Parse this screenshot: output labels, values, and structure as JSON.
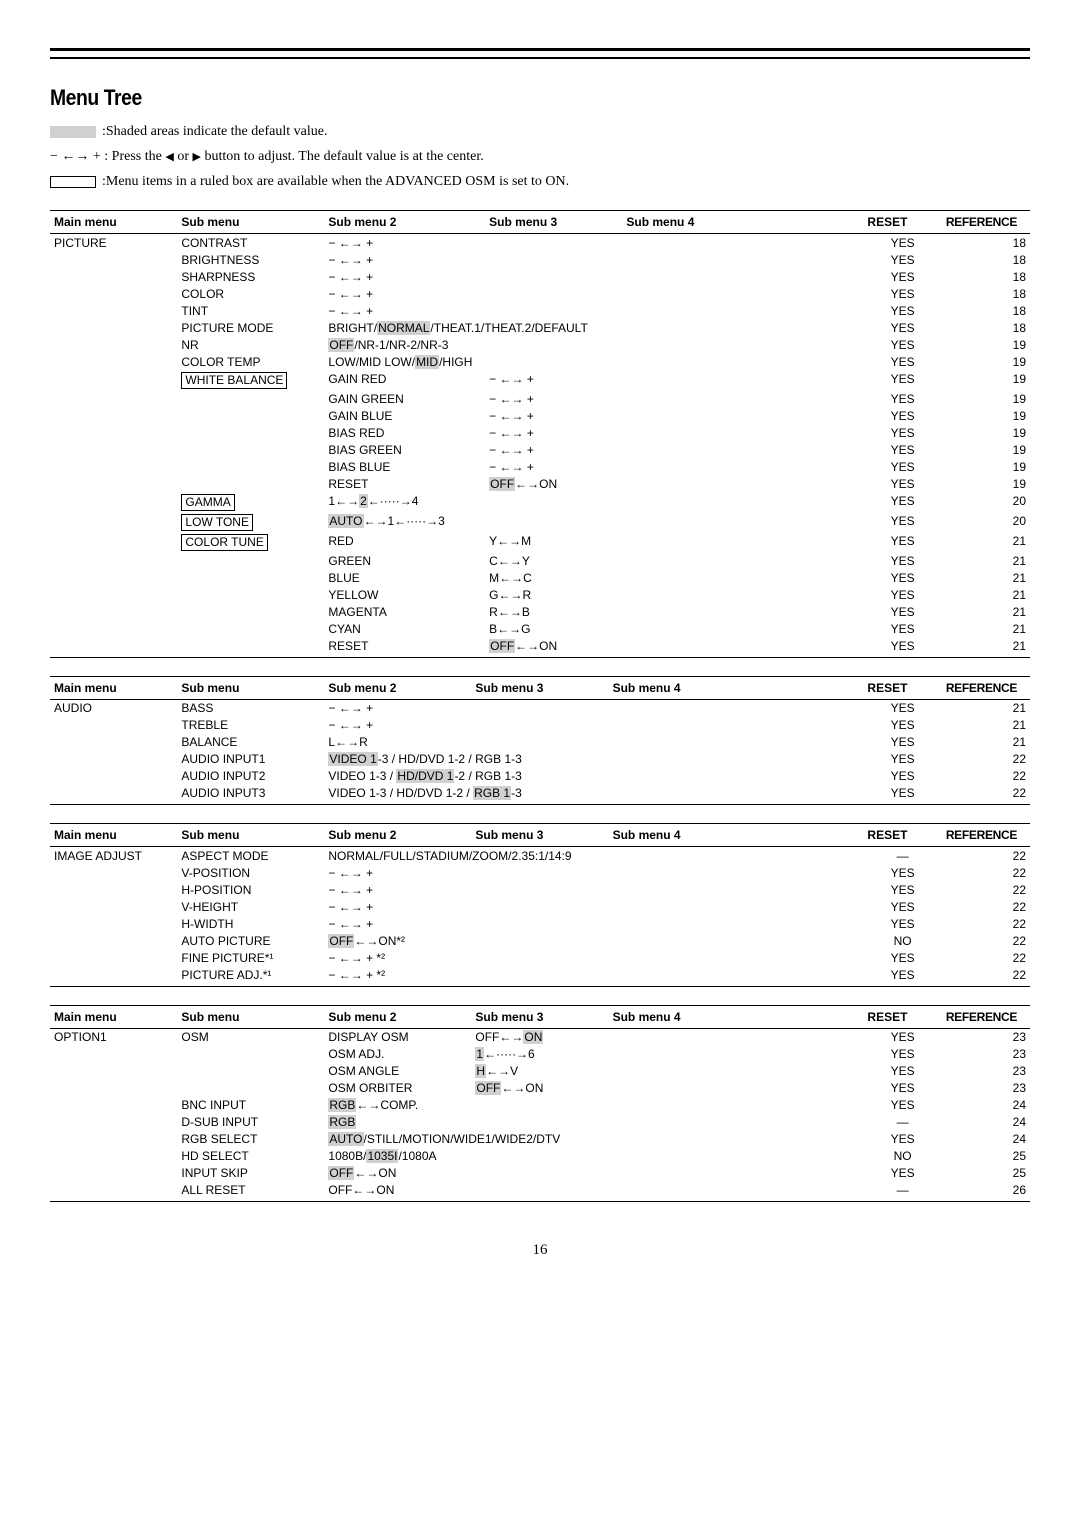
{
  "title": "Menu Tree",
  "legend": {
    "shaded": ":Shaded areas indicate the default value.",
    "arrows_prefix": "− ←→ + : Press the ",
    "arrows_suffix": " button to adjust. The default value is at the center.",
    "ruled": ":Menu items in a ruled box are available when the ADVANCED OSM is set to ON."
  },
  "headers": {
    "main": "Main menu",
    "sub": "Sub menu",
    "sub2": "Sub menu 2",
    "sub3": "Sub menu 3",
    "sub4": "Sub menu 4",
    "reset": "RESET",
    "ref": "REFERENCE"
  },
  "tables": [
    {
      "rows": [
        {
          "main": "PICTURE",
          "sub": "CONTRAST",
          "sub2": "− ←→ +",
          "reset": "YES",
          "ref": "18"
        },
        {
          "sub": "BRIGHTNESS",
          "sub2": "− ←→ +",
          "reset": "YES",
          "ref": "18"
        },
        {
          "sub": "SHARPNESS",
          "sub2": "− ←→ +",
          "reset": "YES",
          "ref": "18"
        },
        {
          "sub": "COLOR",
          "sub2": "− ←→ +",
          "reset": "YES",
          "ref": "18"
        },
        {
          "sub": "TINT",
          "sub2": "− ←→ +",
          "reset": "YES",
          "ref": "18"
        },
        {
          "sub": "PICTURE MODE",
          "sub2html": "BRIGHT/<span class='shaded'>NORMAL</span>/THEAT.1/THEAT.2/DEFAULT",
          "span23": true,
          "reset": "YES",
          "ref": "18"
        },
        {
          "sub": "NR",
          "sub2html": "<span class='shaded'>OFF</span>/NR-1/NR-2/NR-3",
          "reset": "YES",
          "ref": "19"
        },
        {
          "sub": "COLOR TEMP",
          "sub2html": "LOW/MID LOW/<span class='shaded'>MID</span>/HIGH",
          "span23": true,
          "reset": "YES",
          "ref": "19"
        },
        {
          "subhtml": "<span class='boxed'>WHITE BALANCE</span>",
          "sub2": "GAIN RED",
          "sub3": "− ←→ +",
          "reset": "YES",
          "ref": "19"
        },
        {
          "sub2": "GAIN GREEN",
          "sub3": "− ←→ +",
          "reset": "YES",
          "ref": "19"
        },
        {
          "sub2": "GAIN BLUE",
          "sub3": "− ←→ +",
          "reset": "YES",
          "ref": "19"
        },
        {
          "sub2": "BIAS RED",
          "sub3": "− ←→ +",
          "reset": "YES",
          "ref": "19"
        },
        {
          "sub2": "BIAS GREEN",
          "sub3": "− ←→ +",
          "reset": "YES",
          "ref": "19"
        },
        {
          "sub2": "BIAS BLUE",
          "sub3": "− ←→ +",
          "reset": "YES",
          "ref": "19"
        },
        {
          "sub2": "RESET",
          "sub3html": "<span class='shaded'>OFF</span>←→ON",
          "reset": "YES",
          "ref": "19"
        },
        {
          "subhtml": "<span class='boxed'>GAMMA</span>",
          "sub2html": "1←→<span class='shaded'>2</span>←·····→4",
          "reset": "YES",
          "ref": "20"
        },
        {
          "subhtml": "<span class='boxed'>LOW TONE</span>",
          "sub2html": "<span class='shaded'>AUTO</span>←→1←·····→3",
          "reset": "YES",
          "ref": "20"
        },
        {
          "subhtml": "<span class='boxed'>COLOR TUNE</span>",
          "sub2": "RED",
          "sub3": "Y←→M",
          "reset": "YES",
          "ref": "21"
        },
        {
          "sub2": "GREEN",
          "sub3": "C←→Y",
          "reset": "YES",
          "ref": "21"
        },
        {
          "sub2": "BLUE",
          "sub3": "M←→C",
          "reset": "YES",
          "ref": "21"
        },
        {
          "sub2": "YELLOW",
          "sub3": "G←→R",
          "reset": "YES",
          "ref": "21"
        },
        {
          "sub2": "MAGENTA",
          "sub3": "R←→B",
          "reset": "YES",
          "ref": "21"
        },
        {
          "sub2": "CYAN",
          "sub3": "B←→G",
          "reset": "YES",
          "ref": "21"
        },
        {
          "sub2": "RESET",
          "sub3html": "<span class='shaded'>OFF</span>←→ON",
          "reset": "YES",
          "ref": "21"
        }
      ]
    },
    {
      "rows": [
        {
          "main": "AUDIO",
          "sub": "BASS",
          "sub2": "− ←→ +",
          "reset": "YES",
          "ref": "21"
        },
        {
          "sub": "TREBLE",
          "sub2": "− ←→ +",
          "reset": "YES",
          "ref": "21"
        },
        {
          "sub": "BALANCE",
          "sub2": "L←→R",
          "reset": "YES",
          "ref": "21"
        },
        {
          "sub": "AUDIO INPUT1",
          "sub2html": "<span class='shaded'>VIDEO 1</span>-3 / HD/DVD 1-2 / RGB 1-3",
          "span23": true,
          "reset": "YES",
          "ref": "22"
        },
        {
          "sub": "AUDIO INPUT2",
          "sub2html": "VIDEO 1-3 / <span class='shaded'>HD/DVD 1</span>-2 / RGB 1-3",
          "span23": true,
          "reset": "YES",
          "ref": "22"
        },
        {
          "sub": "AUDIO INPUT3",
          "sub2html": "VIDEO 1-3 / HD/DVD 1-2 / <span class='shaded'>RGB 1</span>-3",
          "span23": true,
          "reset": "YES",
          "ref": "22"
        }
      ]
    },
    {
      "rows": [
        {
          "main": "IMAGE ADJUST",
          "sub": "ASPECT MODE",
          "sub2html": "NORMAL/FULL/STADIUM/ZOOM/2.35:1/14:9",
          "span23": true,
          "reset": "—",
          "ref": "22"
        },
        {
          "sub": "V-POSITION",
          "sub2": "− ←→ +",
          "reset": "YES",
          "ref": "22"
        },
        {
          "sub": "H-POSITION",
          "sub2": "− ←→ +",
          "reset": "YES",
          "ref": "22"
        },
        {
          "sub": "V-HEIGHT",
          "sub2": "− ←→ +",
          "reset": "YES",
          "ref": "22"
        },
        {
          "sub": "H-WIDTH",
          "sub2": "− ←→ +",
          "reset": "YES",
          "ref": "22"
        },
        {
          "sub": "AUTO PICTURE",
          "sub2html": "<span class='shaded'>OFF</span>←→ON*²",
          "reset": "NO",
          "ref": "22"
        },
        {
          "sub": "FINE PICTURE*¹",
          "sub2": "− ←→ + *²",
          "reset": "YES",
          "ref": "22"
        },
        {
          "sub": "PICTURE ADJ.*¹",
          "sub2": "− ←→ + *²",
          "reset": "YES",
          "ref": "22"
        }
      ]
    },
    {
      "rows": [
        {
          "main": "OPTION1",
          "sub": "OSM",
          "sub2": "DISPLAY OSM",
          "sub3html": "OFF←→<span class='shaded'>ON</span>",
          "reset": "YES",
          "ref": "23"
        },
        {
          "sub2": "OSM ADJ.",
          "sub3html": "<span class='shaded'>1</span>←·····→6",
          "reset": "YES",
          "ref": "23"
        },
        {
          "sub2": "OSM ANGLE",
          "sub3html": "<span class='shaded'>H</span>←→V",
          "reset": "YES",
          "ref": "23"
        },
        {
          "sub2": "OSM ORBITER",
          "sub3html": "<span class='shaded'>OFF</span>←→ON",
          "reset": "YES",
          "ref": "23"
        },
        {
          "sub": "BNC INPUT",
          "sub2html": "<span class='shaded'>RGB</span>←→COMP.",
          "reset": "YES",
          "ref": "24"
        },
        {
          "sub": "D-SUB INPUT",
          "sub2html": "<span class='shaded'>RGB</span>",
          "reset": "—",
          "ref": "24"
        },
        {
          "sub": "RGB SELECT",
          "sub2html": "<span class='shaded'>AUTO</span>/STILL/MOTION/WIDE1/WIDE2/DTV",
          "span23": true,
          "reset": "YES",
          "ref": "24"
        },
        {
          "sub": "HD SELECT",
          "sub2html": "1080B/<span class='shaded'>1035I</span>/1080A",
          "reset": "NO",
          "ref": "25"
        },
        {
          "sub": "INPUT SKIP",
          "sub2html": "<span class='shaded'>OFF</span>←→ON",
          "reset": "YES",
          "ref": "25"
        },
        {
          "sub": "ALL RESET",
          "sub2": "OFF←→ON",
          "reset": "—",
          "ref": "26"
        }
      ]
    }
  ],
  "pagenum": "16"
}
